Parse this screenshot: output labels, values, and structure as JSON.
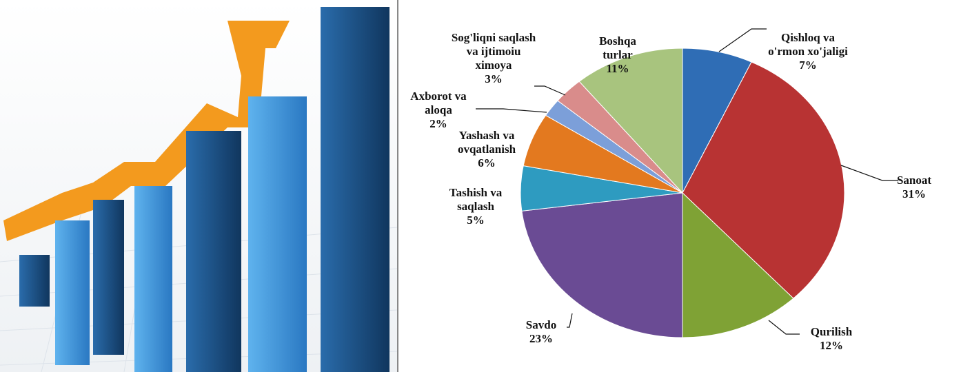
{
  "chart_data": {
    "type": "pie",
    "categories": [
      "Qishloq va o'rmon xo'jaligi",
      "Sanoat",
      "Qurilish",
      "Savdo",
      "Tashish va saqlash",
      "Yashash va ovqatlanish",
      "Axborot va aloqa",
      "Sog'liqni saqlash va ijtimoiu ximoya",
      "Boshqa turlar"
    ],
    "values": [
      7,
      31,
      12,
      23,
      5,
      6,
      2,
      3,
      11
    ],
    "value_labels": [
      "7%",
      "31%",
      "12%",
      "23%",
      "5%",
      "6%",
      "2%",
      "3%",
      "11%"
    ],
    "colors": [
      "#2f6db5",
      "#b83333",
      "#7fa235",
      "#6a4b94",
      "#2e9bc0",
      "#e3791f",
      "#7c9fd9",
      "#d98c8b",
      "#a8c47e"
    ]
  }
}
